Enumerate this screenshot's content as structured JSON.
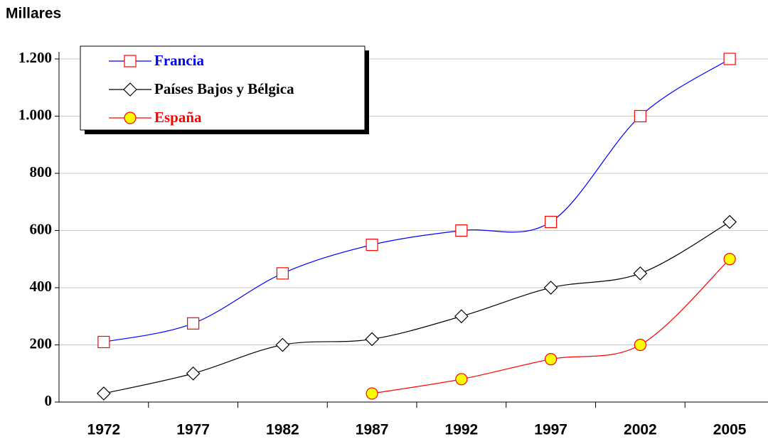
{
  "chart_data": {
    "type": "line",
    "y_label": "Millares",
    "categories": [
      "1972",
      "1977",
      "1982",
      "1987",
      "1992",
      "1997",
      "2002",
      "2005"
    ],
    "series": [
      {
        "name": "Francia",
        "color": "#0000ff",
        "marker": "square",
        "marker_color": "#ff0000",
        "marker_fill": "#ffffff",
        "values": [
          210,
          275,
          450,
          550,
          600,
          630,
          1000,
          1200
        ]
      },
      {
        "name": "Países Bajos y Bélgica",
        "color": "#000000",
        "marker": "diamond",
        "marker_color": "#000000",
        "marker_fill": "#ffffff",
        "values": [
          30,
          100,
          200,
          220,
          300,
          400,
          450,
          630
        ]
      },
      {
        "name": "España",
        "color": "#ff0000",
        "marker": "circle",
        "marker_color": "#ff0000",
        "marker_fill": "#ffff00",
        "values": [
          null,
          null,
          null,
          30,
          80,
          150,
          200,
          500
        ]
      }
    ],
    "ylim": [
      0,
      1200
    ],
    "yticks": [
      0,
      200,
      400,
      600,
      800,
      {
        "value": 1000,
        "label": "1.000"
      },
      {
        "value": 1200,
        "label": "1.200"
      }
    ],
    "grid": true,
    "legend": "top-left"
  }
}
